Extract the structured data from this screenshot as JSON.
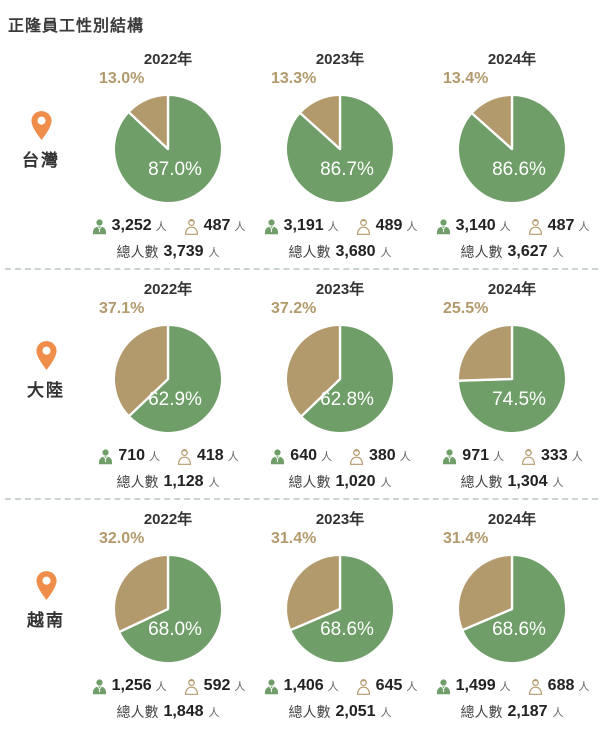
{
  "title": "正隆員工性別結構",
  "colors": {
    "male_green": "#6f9e68",
    "female_tan": "#b39a6c",
    "pin_orange": "#ef8e4b",
    "divider": "#c9d3d5",
    "text_dark": "#333333",
    "unit_gray": "#666666"
  },
  "icons": {
    "male": "male-person-icon",
    "female": "female-person-icon",
    "region": "location-pin-icon"
  },
  "chart_data": {
    "type": "pie",
    "title": "正隆員工性別結構",
    "total_label": "總人數",
    "unit_suffix": "人",
    "legend_position": "counts-below-each-pie",
    "slice_order": "male-slice starts at 12 o'clock clockwise, female-slice fills remainder",
    "regions": [
      {
        "region": "台灣",
        "years": [
          {
            "year": "2022年",
            "male_pct": 87.0,
            "female_pct": 13.0,
            "male_pct_label": "87.0%",
            "female_pct_label": "13.0%",
            "male_count": "3,252",
            "female_count": "487",
            "total": "3,739"
          },
          {
            "year": "2023年",
            "male_pct": 86.7,
            "female_pct": 13.3,
            "male_pct_label": "86.7%",
            "female_pct_label": "13.3%",
            "male_count": "3,191",
            "female_count": "489",
            "total": "3,680"
          },
          {
            "year": "2024年",
            "male_pct": 86.6,
            "female_pct": 13.4,
            "male_pct_label": "86.6%",
            "female_pct_label": "13.4%",
            "male_count": "3,140",
            "female_count": "487",
            "total": "3,627"
          }
        ]
      },
      {
        "region": "大陸",
        "years": [
          {
            "year": "2022年",
            "male_pct": 62.9,
            "female_pct": 37.1,
            "male_pct_label": "62.9%",
            "female_pct_label": "37.1%",
            "male_count": "710",
            "female_count": "418",
            "total": "1,128"
          },
          {
            "year": "2023年",
            "male_pct": 62.8,
            "female_pct": 37.2,
            "male_pct_label": "62.8%",
            "female_pct_label": "37.2%",
            "male_count": "640",
            "female_count": "380",
            "total": "1,020"
          },
          {
            "year": "2024年",
            "male_pct": 74.5,
            "female_pct": 25.5,
            "male_pct_label": "74.5%",
            "female_pct_label": "25.5%",
            "male_count": "971",
            "female_count": "333",
            "total": "1,304"
          }
        ]
      },
      {
        "region": "越南",
        "years": [
          {
            "year": "2022年",
            "male_pct": 68.0,
            "female_pct": 32.0,
            "male_pct_label": "68.0%",
            "female_pct_label": "32.0%",
            "male_count": "1,256",
            "female_count": "592",
            "total": "1,848"
          },
          {
            "year": "2023年",
            "male_pct": 68.6,
            "female_pct": 31.4,
            "male_pct_label": "68.6%",
            "female_pct_label": "31.4%",
            "male_count": "1,406",
            "female_count": "645",
            "total": "2,051"
          },
          {
            "year": "2024年",
            "male_pct": 68.6,
            "female_pct": 31.4,
            "male_pct_label": "68.6%",
            "female_pct_label": "31.4%",
            "male_count": "1,499",
            "female_count": "688",
            "total": "2,187"
          }
        ]
      }
    ]
  }
}
